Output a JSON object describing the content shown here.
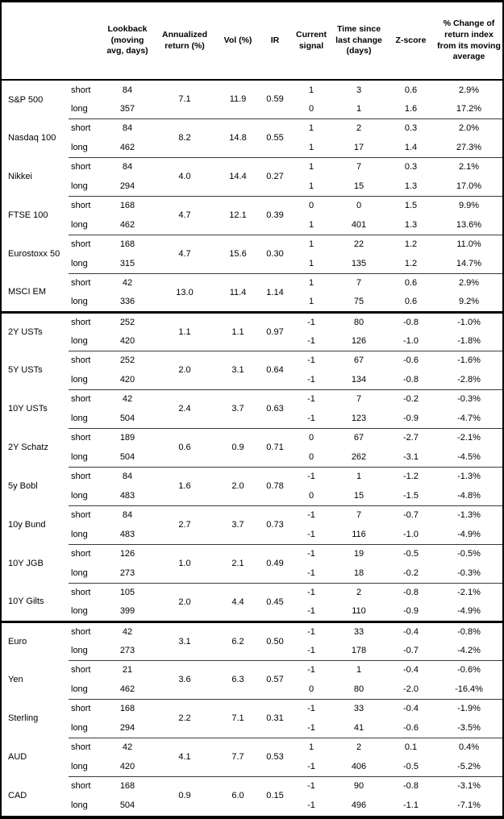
{
  "table": {
    "header": {
      "lookback": "Lookback (moving avg, days)",
      "annualized_return": "Annualized return (%)",
      "vol": "Vol (%)",
      "ir": "IR",
      "current_signal": "Current signal",
      "time_since": "Time since last change (days)",
      "z_score": "Z-score",
      "pct_change": "% Change of return index from its moving average"
    },
    "sections": [
      {
        "instruments": [
          {
            "name": "S&P 500",
            "annualized_return": "7.1",
            "vol": "11.9",
            "ir": "0.59",
            "rows": [
              {
                "label": "short",
                "lookback": "84",
                "signal": "1",
                "time_since": "3",
                "z_score": "0.6",
                "pct_change": "2.9%"
              },
              {
                "label": "long",
                "lookback": "357",
                "signal": "0",
                "time_since": "1",
                "z_score": "1.6",
                "pct_change": "17.2%"
              }
            ]
          },
          {
            "name": "Nasdaq 100",
            "annualized_return": "8.2",
            "vol": "14.8",
            "ir": "0.55",
            "rows": [
              {
                "label": "short",
                "lookback": "84",
                "signal": "1",
                "time_since": "2",
                "z_score": "0.3",
                "pct_change": "2.0%"
              },
              {
                "label": "long",
                "lookback": "462",
                "signal": "1",
                "time_since": "17",
                "z_score": "1.4",
                "pct_change": "27.3%"
              }
            ]
          },
          {
            "name": "Nikkei",
            "annualized_return": "4.0",
            "vol": "14.4",
            "ir": "0.27",
            "rows": [
              {
                "label": "short",
                "lookback": "84",
                "signal": "1",
                "time_since": "7",
                "z_score": "0.3",
                "pct_change": "2.1%"
              },
              {
                "label": "long",
                "lookback": "294",
                "signal": "1",
                "time_since": "15",
                "z_score": "1.3",
                "pct_change": "17.0%"
              }
            ]
          },
          {
            "name": "FTSE 100",
            "annualized_return": "4.7",
            "vol": "12.1",
            "ir": "0.39",
            "rows": [
              {
                "label": "short",
                "lookback": "168",
                "signal": "0",
                "time_since": "0",
                "z_score": "1.5",
                "pct_change": "9.9%"
              },
              {
                "label": "long",
                "lookback": "462",
                "signal": "1",
                "time_since": "401",
                "z_score": "1.3",
                "pct_change": "13.6%"
              }
            ]
          },
          {
            "name": "Eurostoxx 50",
            "annualized_return": "4.7",
            "vol": "15.6",
            "ir": "0.30",
            "rows": [
              {
                "label": "short",
                "lookback": "168",
                "signal": "1",
                "time_since": "22",
                "z_score": "1.2",
                "pct_change": "11.0%"
              },
              {
                "label": "long",
                "lookback": "315",
                "signal": "1",
                "time_since": "135",
                "z_score": "1.2",
                "pct_change": "14.7%"
              }
            ]
          },
          {
            "name": "MSCI EM",
            "annualized_return": "13.0",
            "vol": "11.4",
            "ir": "1.14",
            "rows": [
              {
                "label": "short",
                "lookback": "42",
                "signal": "1",
                "time_since": "7",
                "z_score": "0.6",
                "pct_change": "2.9%"
              },
              {
                "label": "long",
                "lookback": "336",
                "signal": "1",
                "time_since": "75",
                "z_score": "0.6",
                "pct_change": "9.2%"
              }
            ]
          }
        ]
      },
      {
        "instruments": [
          {
            "name": "2Y USTs",
            "annualized_return": "1.1",
            "vol": "1.1",
            "ir": "0.97",
            "rows": [
              {
                "label": "short",
                "lookback": "252",
                "signal": "-1",
                "time_since": "80",
                "z_score": "-0.8",
                "pct_change": "-1.0%"
              },
              {
                "label": "long",
                "lookback": "420",
                "signal": "-1",
                "time_since": "126",
                "z_score": "-1.0",
                "pct_change": "-1.8%"
              }
            ]
          },
          {
            "name": "5Y USTs",
            "annualized_return": "2.0",
            "vol": "3.1",
            "ir": "0.64",
            "rows": [
              {
                "label": "short",
                "lookback": "252",
                "signal": "-1",
                "time_since": "67",
                "z_score": "-0.6",
                "pct_change": "-1.6%"
              },
              {
                "label": "long",
                "lookback": "420",
                "signal": "-1",
                "time_since": "134",
                "z_score": "-0.8",
                "pct_change": "-2.8%"
              }
            ]
          },
          {
            "name": "10Y USTs",
            "annualized_return": "2.4",
            "vol": "3.7",
            "ir": "0.63",
            "rows": [
              {
                "label": "short",
                "lookback": "42",
                "signal": "-1",
                "time_since": "7",
                "z_score": "-0.2",
                "pct_change": "-0.3%"
              },
              {
                "label": "long",
                "lookback": "504",
                "signal": "-1",
                "time_since": "123",
                "z_score": "-0.9",
                "pct_change": "-4.7%"
              }
            ]
          },
          {
            "name": "2Y Schatz",
            "annualized_return": "0.6",
            "vol": "0.9",
            "ir": "0.71",
            "rows": [
              {
                "label": "short",
                "lookback": "189",
                "signal": "0",
                "time_since": "67",
                "z_score": "-2.7",
                "pct_change": "-2.1%"
              },
              {
                "label": "long",
                "lookback": "504",
                "signal": "0",
                "time_since": "262",
                "z_score": "-3.1",
                "pct_change": "-4.5%"
              }
            ]
          },
          {
            "name": "5y Bobl",
            "annualized_return": "1.6",
            "vol": "2.0",
            "ir": "0.78",
            "rows": [
              {
                "label": "short",
                "lookback": "84",
                "signal": "-1",
                "time_since": "1",
                "z_score": "-1.2",
                "pct_change": "-1.3%"
              },
              {
                "label": "long",
                "lookback": "483",
                "signal": "0",
                "time_since": "15",
                "z_score": "-1.5",
                "pct_change": "-4.8%"
              }
            ]
          },
          {
            "name": "10y Bund",
            "annualized_return": "2.7",
            "vol": "3.7",
            "ir": "0.73",
            "rows": [
              {
                "label": "short",
                "lookback": "84",
                "signal": "-1",
                "time_since": "7",
                "z_score": "-0.7",
                "pct_change": "-1.3%"
              },
              {
                "label": "long",
                "lookback": "483",
                "signal": "-1",
                "time_since": "116",
                "z_score": "-1.0",
                "pct_change": "-4.9%"
              }
            ]
          },
          {
            "name": "10Y JGB",
            "annualized_return": "1.0",
            "vol": "2.1",
            "ir": "0.49",
            "rows": [
              {
                "label": "short",
                "lookback": "126",
                "signal": "-1",
                "time_since": "19",
                "z_score": "-0.5",
                "pct_change": "-0.5%"
              },
              {
                "label": "long",
                "lookback": "273",
                "signal": "-1",
                "time_since": "18",
                "z_score": "-0.2",
                "pct_change": "-0.3%"
              }
            ]
          },
          {
            "name": "10Y Gilts",
            "annualized_return": "2.0",
            "vol": "4.4",
            "ir": "0.45",
            "rows": [
              {
                "label": "short",
                "lookback": "105",
                "signal": "-1",
                "time_since": "2",
                "z_score": "-0.8",
                "pct_change": "-2.1%"
              },
              {
                "label": "long",
                "lookback": "399",
                "signal": "-1",
                "time_since": "110",
                "z_score": "-0.9",
                "pct_change": "-4.9%"
              }
            ]
          }
        ]
      },
      {
        "instruments": [
          {
            "name": "Euro",
            "annualized_return": "3.1",
            "vol": "6.2",
            "ir": "0.50",
            "rows": [
              {
                "label": "short",
                "lookback": "42",
                "signal": "-1",
                "time_since": "33",
                "z_score": "-0.4",
                "pct_change": "-0.8%"
              },
              {
                "label": "long",
                "lookback": "273",
                "signal": "-1",
                "time_since": "178",
                "z_score": "-0.7",
                "pct_change": "-4.2%"
              }
            ]
          },
          {
            "name": "Yen",
            "annualized_return": "3.6",
            "vol": "6.3",
            "ir": "0.57",
            "rows": [
              {
                "label": "short",
                "lookback": "21",
                "signal": "-1",
                "time_since": "1",
                "z_score": "-0.4",
                "pct_change": "-0.6%"
              },
              {
                "label": "long",
                "lookback": "462",
                "signal": "0",
                "time_since": "80",
                "z_score": "-2.0",
                "pct_change": "-16.4%"
              }
            ]
          },
          {
            "name": "Sterling",
            "annualized_return": "2.2",
            "vol": "7.1",
            "ir": "0.31",
            "rows": [
              {
                "label": "short",
                "lookback": "168",
                "signal": "-1",
                "time_since": "33",
                "z_score": "-0.4",
                "pct_change": "-1.9%"
              },
              {
                "label": "long",
                "lookback": "294",
                "signal": "-1",
                "time_since": "41",
                "z_score": "-0.6",
                "pct_change": "-3.5%"
              }
            ]
          },
          {
            "name": "AUD",
            "annualized_return": "4.1",
            "vol": "7.7",
            "ir": "0.53",
            "rows": [
              {
                "label": "short",
                "lookback": "42",
                "signal": "1",
                "time_since": "2",
                "z_score": "0.1",
                "pct_change": "0.4%"
              },
              {
                "label": "long",
                "lookback": "420",
                "signal": "-1",
                "time_since": "406",
                "z_score": "-0.5",
                "pct_change": "-5.2%"
              }
            ]
          },
          {
            "name": "CAD",
            "annualized_return": "0.9",
            "vol": "6.0",
            "ir": "0.15",
            "rows": [
              {
                "label": "short",
                "lookback": "168",
                "signal": "-1",
                "time_since": "90",
                "z_score": "-0.8",
                "pct_change": "-3.1%"
              },
              {
                "label": "long",
                "lookback": "504",
                "signal": "-1",
                "time_since": "496",
                "z_score": "-1.1",
                "pct_change": "-7.1%"
              }
            ]
          }
        ]
      }
    ]
  }
}
